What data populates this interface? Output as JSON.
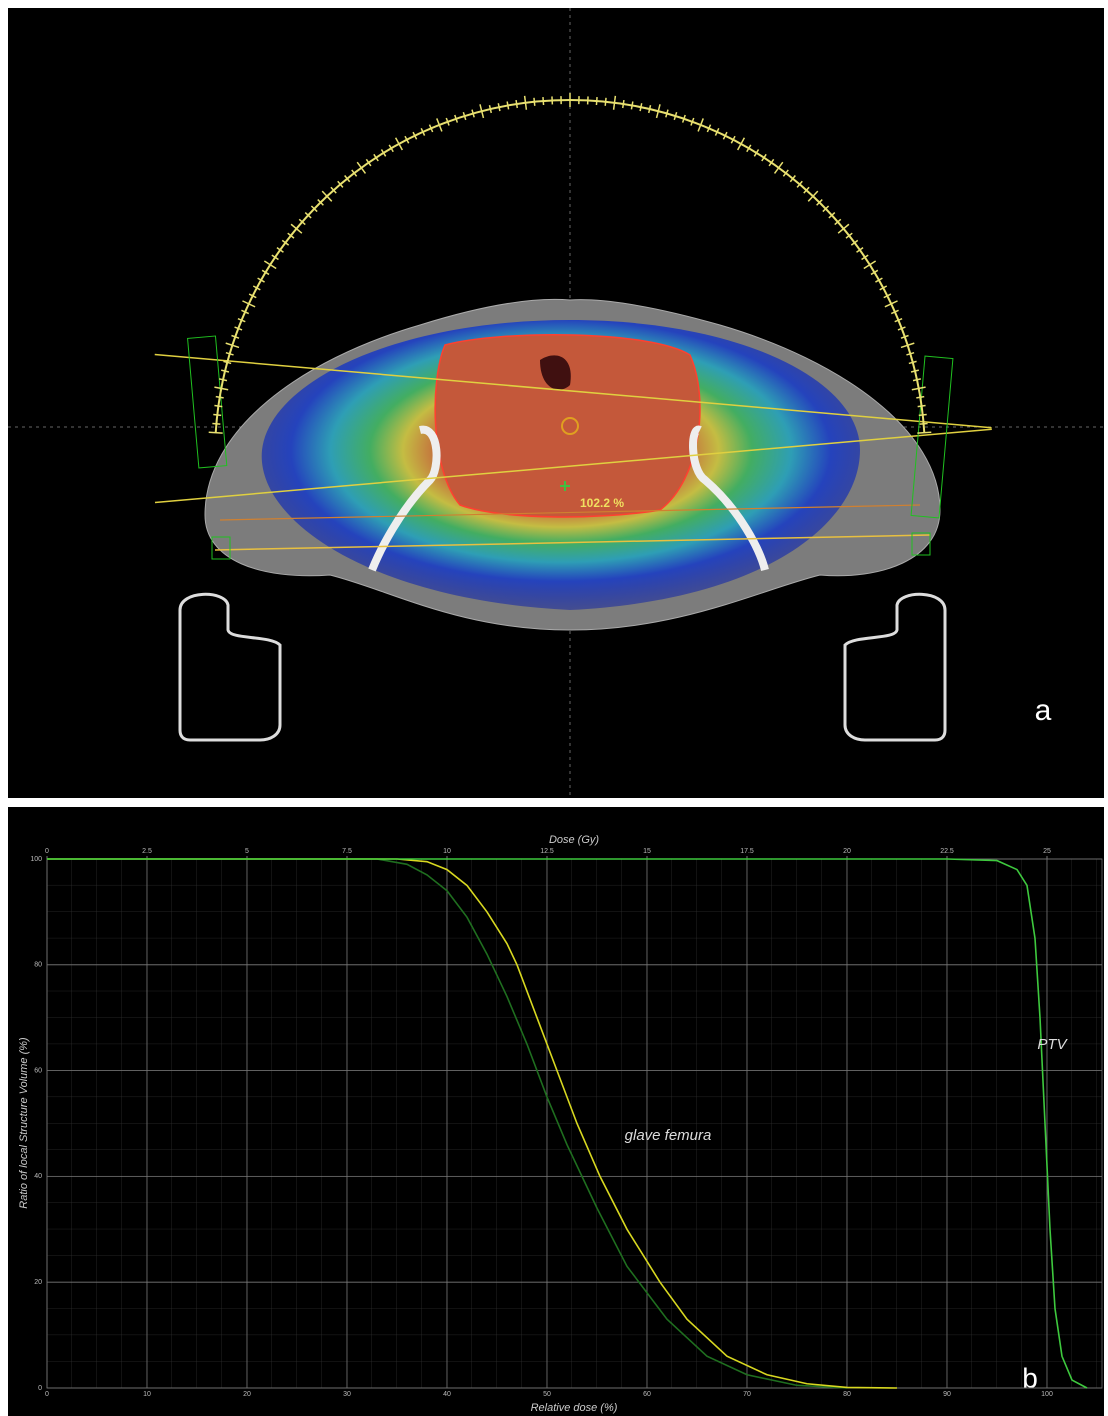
{
  "panel_a": {
    "label": "a",
    "dose_label": "102.2 %"
  },
  "chart_data": {
    "type": "line",
    "panel_label": "b",
    "x2label": "Dose (Gy)",
    "xlabel": "Relative dose (%)",
    "ylabel": "Ratio of local Structure Volume (%)",
    "xlim": [
      0,
      105.5
    ],
    "xticks": [
      0,
      10,
      20,
      30,
      40,
      50,
      60,
      70,
      80,
      90,
      100
    ],
    "x2lim": [
      0,
      26.375
    ],
    "x2ticks": [
      0,
      2.5,
      5,
      7.5,
      10,
      12.5,
      15,
      17.5,
      20,
      22.5,
      25
    ],
    "ylim": [
      0,
      100
    ],
    "yticks": [
      0,
      20,
      40,
      60,
      80,
      100
    ],
    "grid": true,
    "series": [
      {
        "color": "#1f6e1f",
        "x": [
          0,
          33,
          36,
          38,
          40,
          42,
          44,
          46,
          48,
          50,
          52,
          55,
          58,
          62,
          66,
          70,
          75,
          80
        ],
        "values": [
          100,
          100,
          99,
          97,
          94,
          89,
          82,
          74,
          65,
          55,
          46,
          34,
          23,
          13,
          6,
          2.5,
          0.5,
          0
        ]
      },
      {
        "name": "glave femura",
        "color": "#d8d820",
        "x": [
          0,
          35,
          38,
          40,
          42,
          44,
          46,
          47,
          49,
          51,
          53,
          55.3,
          58,
          61.3,
          64,
          68,
          72,
          76,
          80,
          85
        ],
        "values": [
          100,
          100,
          99.5,
          98,
          95,
          90,
          84,
          80,
          70,
          60,
          50,
          40,
          30,
          20,
          13,
          6,
          2.5,
          0.8,
          0.1,
          0
        ]
      },
      {
        "name": "PTV",
        "color": "#3ec93e",
        "x": [
          0,
          90,
          95,
          97,
          98,
          98.8,
          99.3,
          99.8,
          100.3,
          100.8,
          101.5,
          102.5,
          104
        ],
        "values": [
          100,
          100,
          99.7,
          98,
          95,
          85,
          70,
          50,
          30,
          15,
          6,
          1.5,
          0
        ]
      }
    ]
  }
}
